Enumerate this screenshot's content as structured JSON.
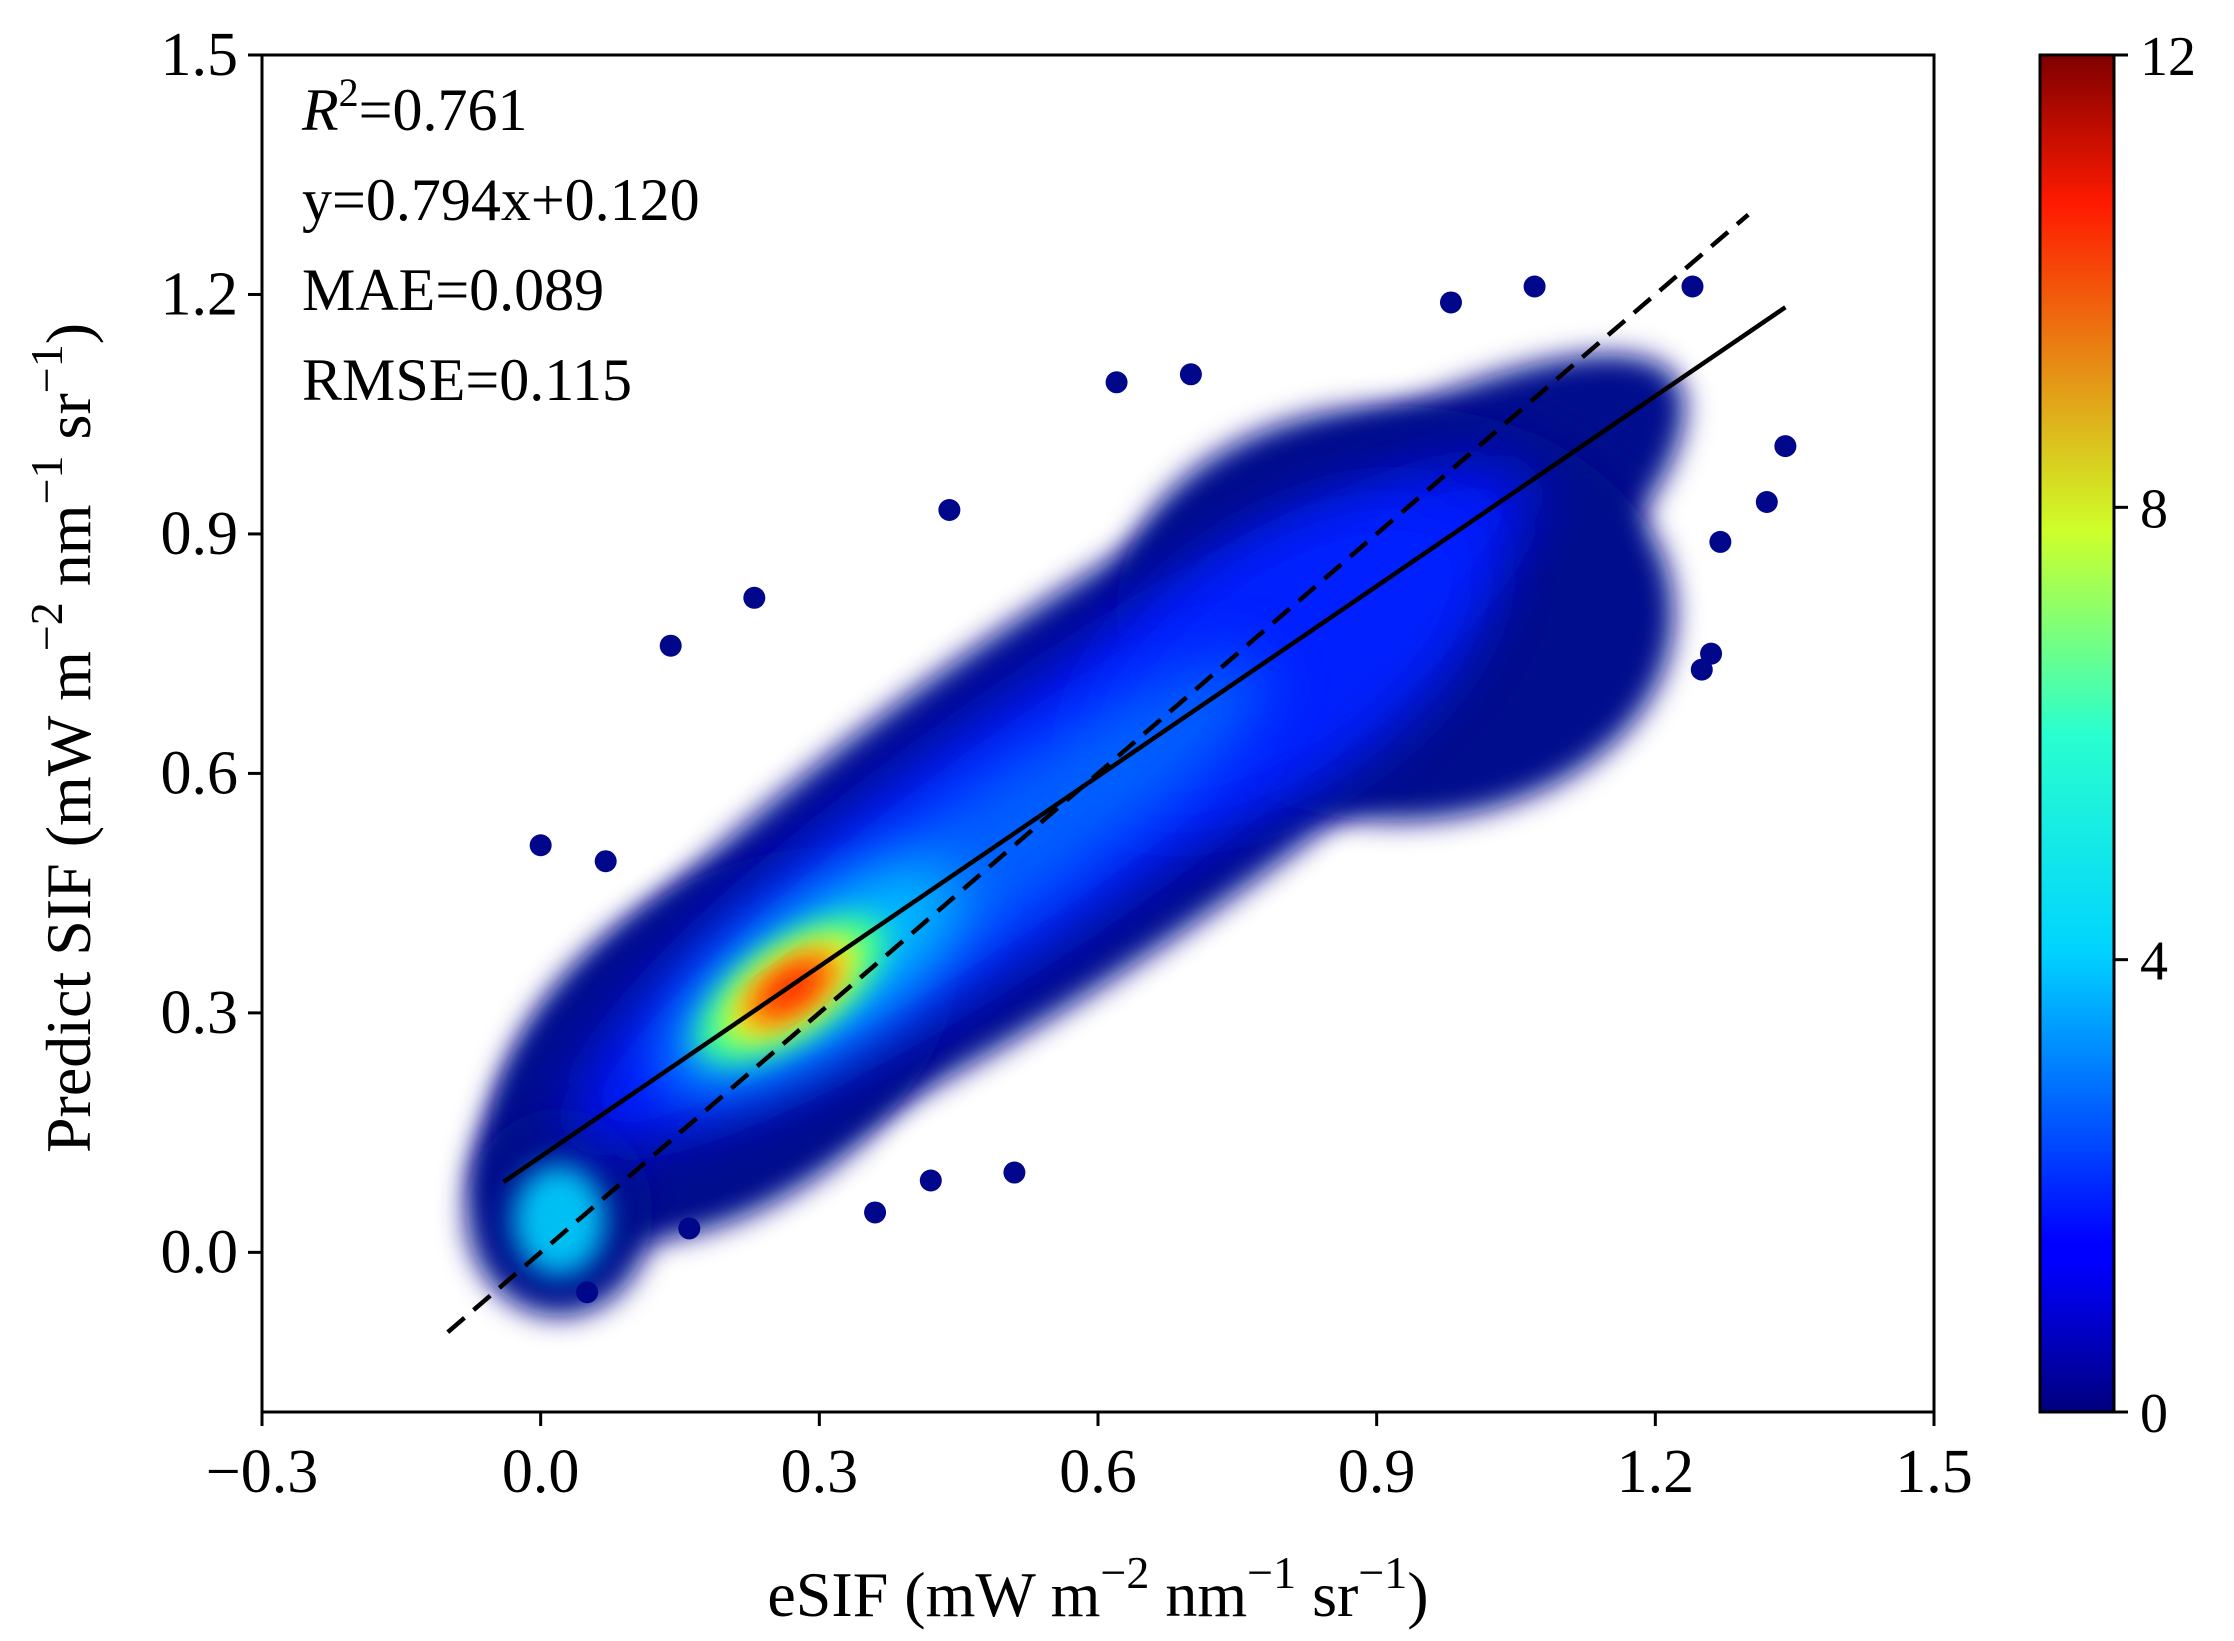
{
  "chart_data": {
    "type": "scatter",
    "subtype": "density-scatter",
    "xlabel": {
      "base": "eSIF (mW m",
      "sup1": "−2",
      "mid1": " nm",
      "sup2": "−1",
      "mid2": " sr",
      "sup3": "−1",
      "end": ")"
    },
    "ylabel": {
      "base": "Predict SIF (mW m",
      "sup1": "−2",
      "mid1": " nm",
      "sup2": "−1",
      "mid2": " sr",
      "sup3": "−1",
      "end": ")"
    },
    "xlim": [
      -0.3,
      1.5
    ],
    "ylim": [
      -0.2,
      1.5
    ],
    "xticks": [
      -0.3,
      0.0,
      0.3,
      0.6,
      0.9,
      1.2,
      1.5
    ],
    "xtick_labels": [
      "−0.3",
      "0.0",
      "0.3",
      "0.6",
      "0.9",
      "1.2",
      "1.5"
    ],
    "yticks": [
      0.0,
      0.3,
      0.6,
      0.9,
      1.2,
      1.5
    ],
    "ytick_labels": [
      "0.0",
      "0.3",
      "0.6",
      "0.9",
      "1.2",
      "1.5"
    ],
    "grid": false,
    "annotations": {
      "r2_label": "R",
      "r2_sup": "2",
      "r2_value": "=0.761",
      "equation": "y=0.794x+0.120",
      "mae": "MAE=0.089",
      "rmse": "RMSE=0.115"
    },
    "fit_line": {
      "slope": 0.794,
      "intercept": 0.12,
      "x_range": [
        -0.04,
        1.34
      ],
      "style": "solid"
    },
    "identity_line": {
      "slope": 1.0,
      "intercept": 0.0,
      "x_range": [
        -0.1,
        1.3
      ],
      "style": "dashed"
    },
    "colorbar": {
      "min": 0,
      "max": 12,
      "ticks": [
        0,
        4,
        8,
        12
      ],
      "tick_labels": [
        "0",
        "4",
        "8",
        "12"
      ],
      "colormap": "jet"
    },
    "density_peak": {
      "x": 0.27,
      "y": 0.33,
      "value": 10
    },
    "secondary_cluster": {
      "x": 0.02,
      "y": 0.04,
      "value": 4
    },
    "outliers": [
      [
        0.0,
        0.51
      ],
      [
        0.07,
        0.49
      ],
      [
        0.23,
        0.82
      ],
      [
        0.14,
        0.76
      ],
      [
        0.44,
        0.93
      ],
      [
        0.51,
        0.1
      ],
      [
        0.42,
        0.09
      ],
      [
        0.36,
        0.05
      ],
      [
        1.34,
        1.01
      ],
      [
        1.32,
        0.94
      ],
      [
        1.27,
        0.89
      ],
      [
        1.26,
        0.75
      ],
      [
        1.24,
        1.21
      ],
      [
        1.25,
        0.73
      ],
      [
        1.07,
        1.21
      ],
      [
        0.98,
        1.19
      ],
      [
        0.62,
        1.09
      ],
      [
        0.7,
        1.1
      ],
      [
        0.16,
        0.03
      ],
      [
        0.05,
        -0.05
      ]
    ]
  }
}
